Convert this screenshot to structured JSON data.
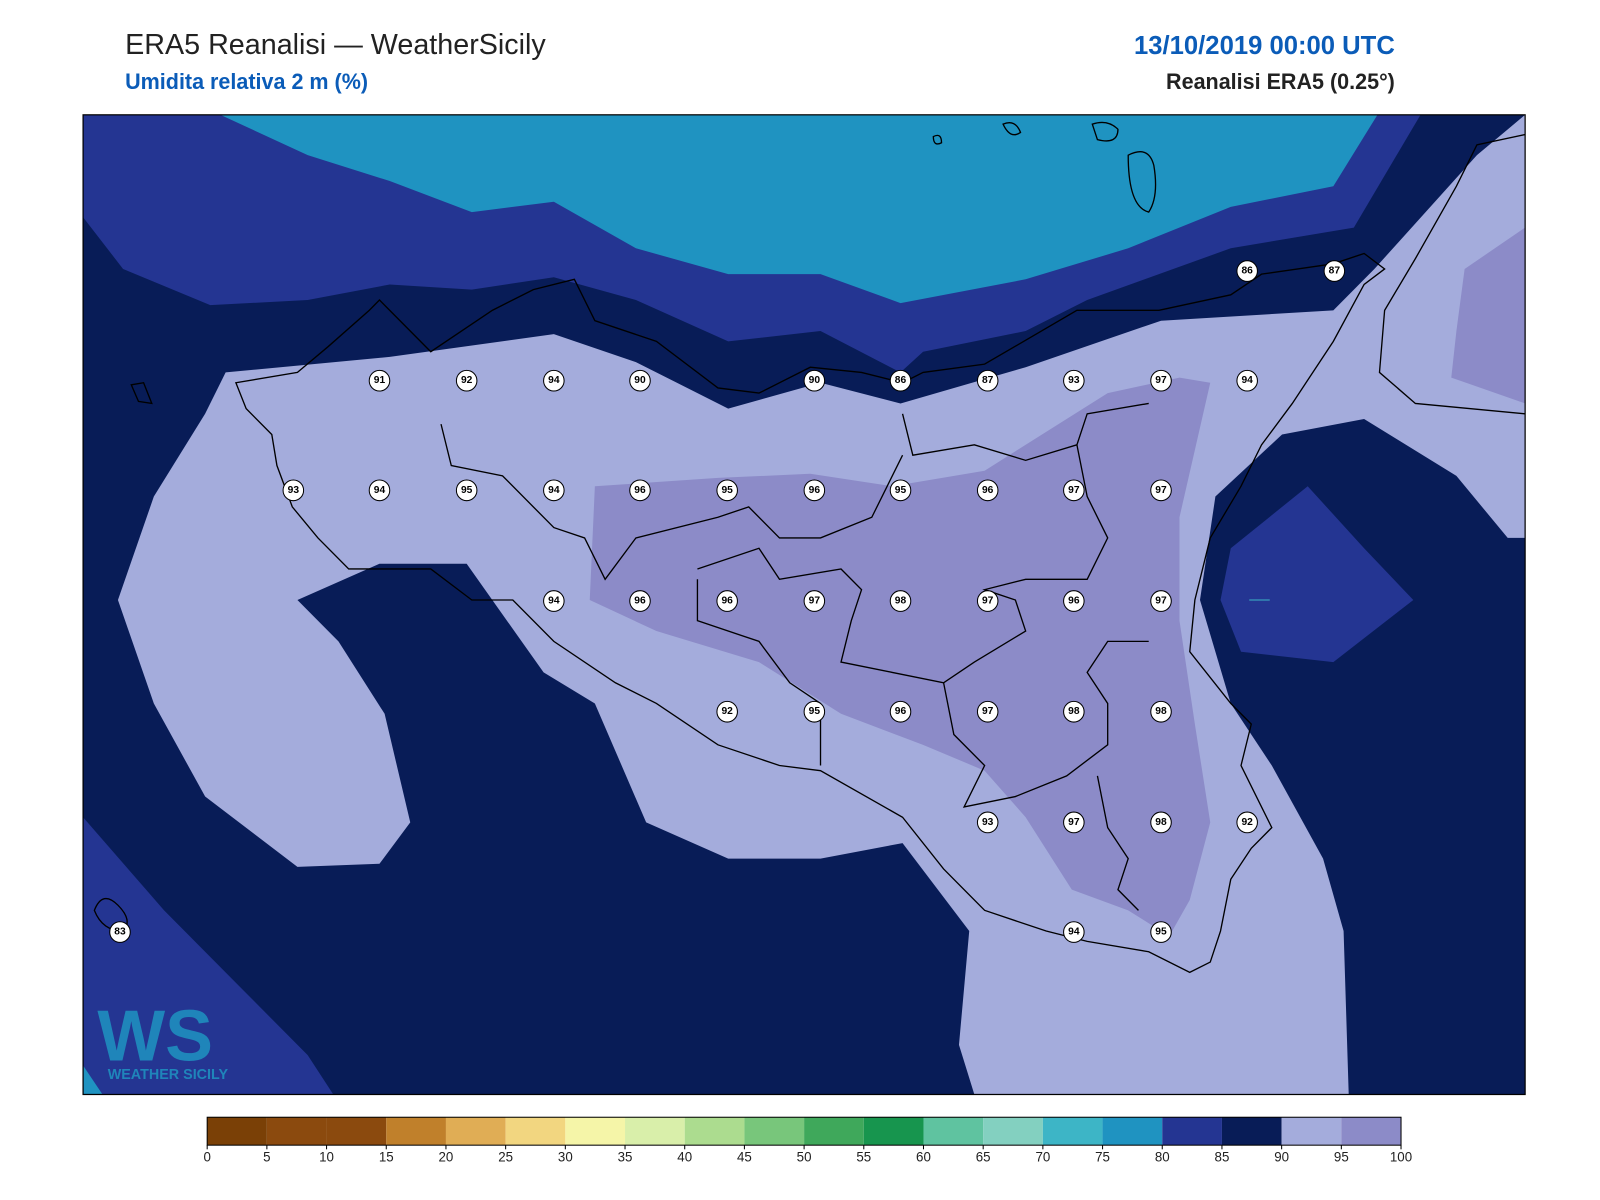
{
  "header": {
    "title": "ERA5 Reanalisi — WeatherSicily",
    "subtitle": "Umidita relativa 2 m (%)",
    "date": "13/10/2019 00:00 UTC",
    "source": "Reanalisi ERA5 (0.25°)"
  },
  "stations": [
    91,
    92,
    94,
    90,
    90,
    86,
    87,
    93,
    97,
    94,
    86,
    87,
    93,
    94,
    95,
    94,
    96,
    95,
    96,
    95,
    96,
    97,
    97,
    94,
    96,
    96,
    97,
    98,
    97,
    96,
    97,
    92,
    95,
    96,
    97,
    98,
    98,
    93,
    97,
    98,
    92,
    83,
    94,
    95
  ],
  "colorbar": {
    "ticks": [
      0,
      5,
      10,
      15,
      20,
      25,
      30,
      35,
      40,
      45,
      50,
      55,
      60,
      65,
      70,
      75,
      80,
      85,
      90,
      95,
      100
    ],
    "colors": [
      "#7a4006",
      "#8b4a0e",
      "#8b4a0e",
      "#c0802b",
      "#e0ad55",
      "#f2d680",
      "#f5f5a8",
      "#d9efaa",
      "#acdc8f",
      "#78c67b",
      "#3fa85b",
      "#17954e",
      "#5fc3a0",
      "#83d0c0",
      "#3db5c6",
      "#1f93c1",
      "#243592",
      "#081c57",
      "#a4acdc",
      "#8c8bc8"
    ]
  },
  "logo": {
    "mark": "WS",
    "text": "WEATHER SICILY"
  }
}
